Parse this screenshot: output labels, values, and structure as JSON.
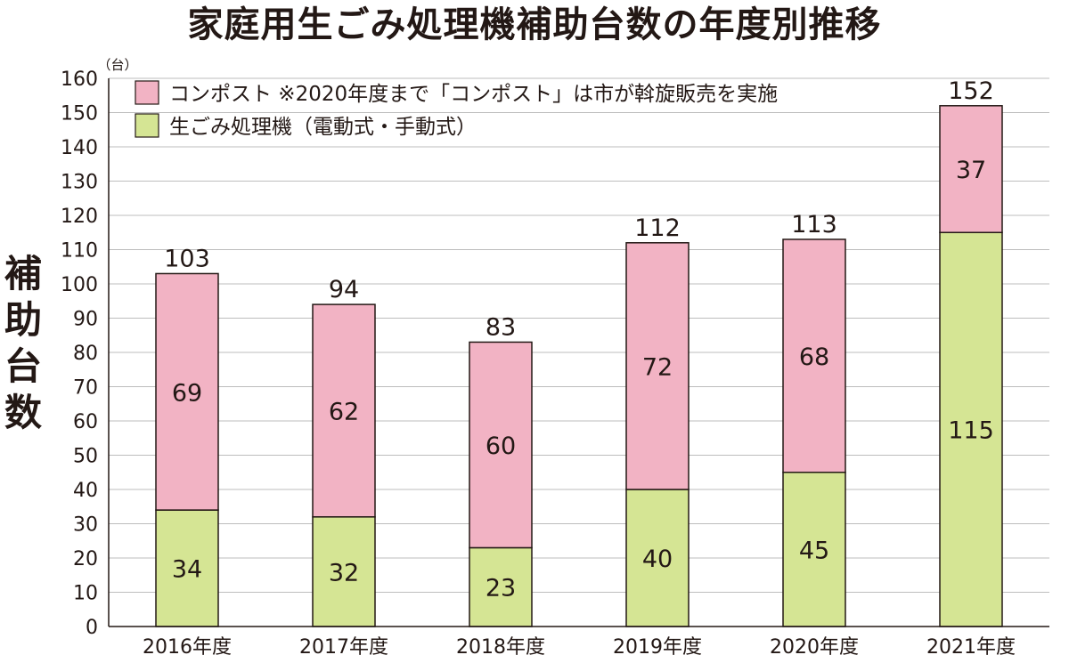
{
  "chart_data": {
    "type": "bar",
    "stacked": true,
    "title": "家庭用生ごみ処理機補助台数の年度別推移",
    "ylabel": "補助台数",
    "yunit": "（台）",
    "xlabel": "",
    "ylim": [
      0,
      160
    ],
    "yticks": [
      0,
      10,
      20,
      30,
      40,
      50,
      60,
      70,
      80,
      90,
      100,
      110,
      120,
      130,
      140,
      150,
      160
    ],
    "grid": true,
    "legend_position": "top-left",
    "categories": [
      "2016年度",
      "2017年度",
      "2018年度",
      "2019年度",
      "2020年度",
      "2021年度"
    ],
    "series": [
      {
        "name": "生ごみ処理機（電動式・手動式）",
        "values": [
          34,
          32,
          23,
          40,
          45,
          115
        ],
        "color": "#d5e594"
      },
      {
        "name": "コンポスト ※2020年度まで「コンポスト」は市が斡旋販売を実施",
        "values": [
          69,
          62,
          60,
          72,
          68,
          37
        ],
        "color": "#f2b3c4"
      }
    ],
    "totals": [
      103,
      94,
      83,
      112,
      113,
      152
    ]
  }
}
